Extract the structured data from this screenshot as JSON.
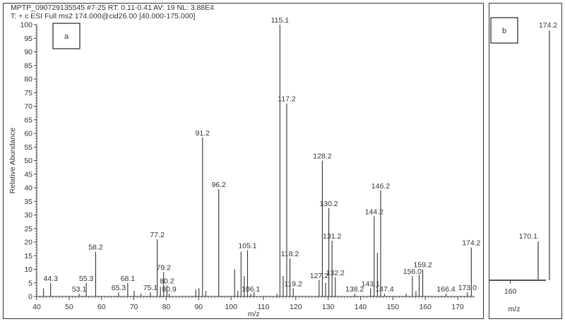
{
  "header": {
    "line1": "MPTP_090729135545 #7-25   RT: 0.11-0.41   AV: 19   NL: 3.88E4",
    "line2": "T: + c ESI Full ms2 174.000@cid26.00 [40.000-175.000]"
  },
  "chart_data": [
    {
      "type": "bar",
      "panel_label": "a",
      "xlabel": "m/z",
      "ylabel": "Relative Abundance",
      "xlim": [
        40,
        175
      ],
      "ylim": [
        0,
        100
      ],
      "xticks": [
        40,
        50,
        60,
        70,
        80,
        90,
        100,
        110,
        120,
        130,
        140,
        150,
        160,
        170
      ],
      "yticks": [
        0,
        5,
        10,
        15,
        20,
        25,
        30,
        35,
        40,
        45,
        50,
        55,
        60,
        65,
        70,
        75,
        80,
        85,
        90,
        95,
        100
      ],
      "peaks": [
        {
          "mz": 42.1,
          "y": 3
        },
        {
          "mz": 44.3,
          "y": 5,
          "label": "44.3"
        },
        {
          "mz": 53.1,
          "y": 1,
          "label": "53.1"
        },
        {
          "mz": 55.3,
          "y": 5,
          "label": "55.3"
        },
        {
          "mz": 58.2,
          "y": 16.5,
          "label": "58.2"
        },
        {
          "mz": 65.3,
          "y": 1.5,
          "label": "65.3"
        },
        {
          "mz": 68.1,
          "y": 5,
          "label": "68.1"
        },
        {
          "mz": 70.1,
          "y": 2
        },
        {
          "mz": 72.2,
          "y": 1
        },
        {
          "mz": 75.1,
          "y": 1.5,
          "label": "75.1"
        },
        {
          "mz": 77.2,
          "y": 21,
          "label": "77.2"
        },
        {
          "mz": 78.2,
          "y": 3.5
        },
        {
          "mz": 79.2,
          "y": 9,
          "label": "79.2"
        },
        {
          "mz": 80.2,
          "y": 4,
          "label": "80.2"
        },
        {
          "mz": 80.9,
          "y": 1,
          "label": "80.9"
        },
        {
          "mz": 89.1,
          "y": 2.5
        },
        {
          "mz": 90.1,
          "y": 3
        },
        {
          "mz": 91.2,
          "y": 58.5,
          "label": "91.2"
        },
        {
          "mz": 92.2,
          "y": 2
        },
        {
          "mz": 96.2,
          "y": 39.5,
          "label": "96.2"
        },
        {
          "mz": 101.1,
          "y": 10
        },
        {
          "mz": 102.1,
          "y": 2
        },
        {
          "mz": 103.1,
          "y": 16.5
        },
        {
          "mz": 104.1,
          "y": 7.5
        },
        {
          "mz": 105.1,
          "y": 17,
          "label": "105.1"
        },
        {
          "mz": 106.1,
          "y": 1,
          "label": "106.1"
        },
        {
          "mz": 107.1,
          "y": 1.5
        },
        {
          "mz": 114.2,
          "y": 1
        },
        {
          "mz": 115.1,
          "y": 100,
          "label": "115.1"
        },
        {
          "mz": 116.1,
          "y": 7.5
        },
        {
          "mz": 117.2,
          "y": 71,
          "label": "117.2"
        },
        {
          "mz": 118.2,
          "y": 14,
          "label": "118.2"
        },
        {
          "mz": 119.2,
          "y": 3,
          "label": "119.2"
        },
        {
          "mz": 127.2,
          "y": 6,
          "label": "127.2"
        },
        {
          "mz": 128.2,
          "y": 50,
          "label": "128.2"
        },
        {
          "mz": 129.2,
          "y": 5
        },
        {
          "mz": 130.2,
          "y": 32.5,
          "label": "130.2"
        },
        {
          "mz": 131.2,
          "y": 20.5,
          "label": "131.2"
        },
        {
          "mz": 132.2,
          "y": 7,
          "label": "132.2"
        },
        {
          "mz": 138.2,
          "y": 1,
          "label": "138.2"
        },
        {
          "mz": 143.1,
          "y": 3,
          "label": "143.1"
        },
        {
          "mz": 144.2,
          "y": 29.5,
          "label": "144.2"
        },
        {
          "mz": 145.2,
          "y": 16
        },
        {
          "mz": 146.2,
          "y": 39,
          "label": "146.2"
        },
        {
          "mz": 147.4,
          "y": 1,
          "label": "147.4"
        },
        {
          "mz": 154.1,
          "y": 1
        },
        {
          "mz": 156.0,
          "y": 7.5,
          "label": "156.0"
        },
        {
          "mz": 157.1,
          "y": 2
        },
        {
          "mz": 158.1,
          "y": 8
        },
        {
          "mz": 159.2,
          "y": 10,
          "label": "159.2"
        },
        {
          "mz": 166.4,
          "y": 1,
          "label": "166.4"
        },
        {
          "mz": 173.0,
          "y": 1.5,
          "label": "173.0"
        },
        {
          "mz": 174.2,
          "y": 18,
          "label": "174.2"
        }
      ]
    },
    {
      "type": "bar",
      "panel_label": "b",
      "xlabel": "m/z",
      "xticks": [
        160
      ],
      "peaks": [
        {
          "mz": 170.1,
          "y": 15.5,
          "label": "170.1"
        },
        {
          "mz": 174.2,
          "y": 100,
          "label": "174.2"
        }
      ]
    }
  ]
}
